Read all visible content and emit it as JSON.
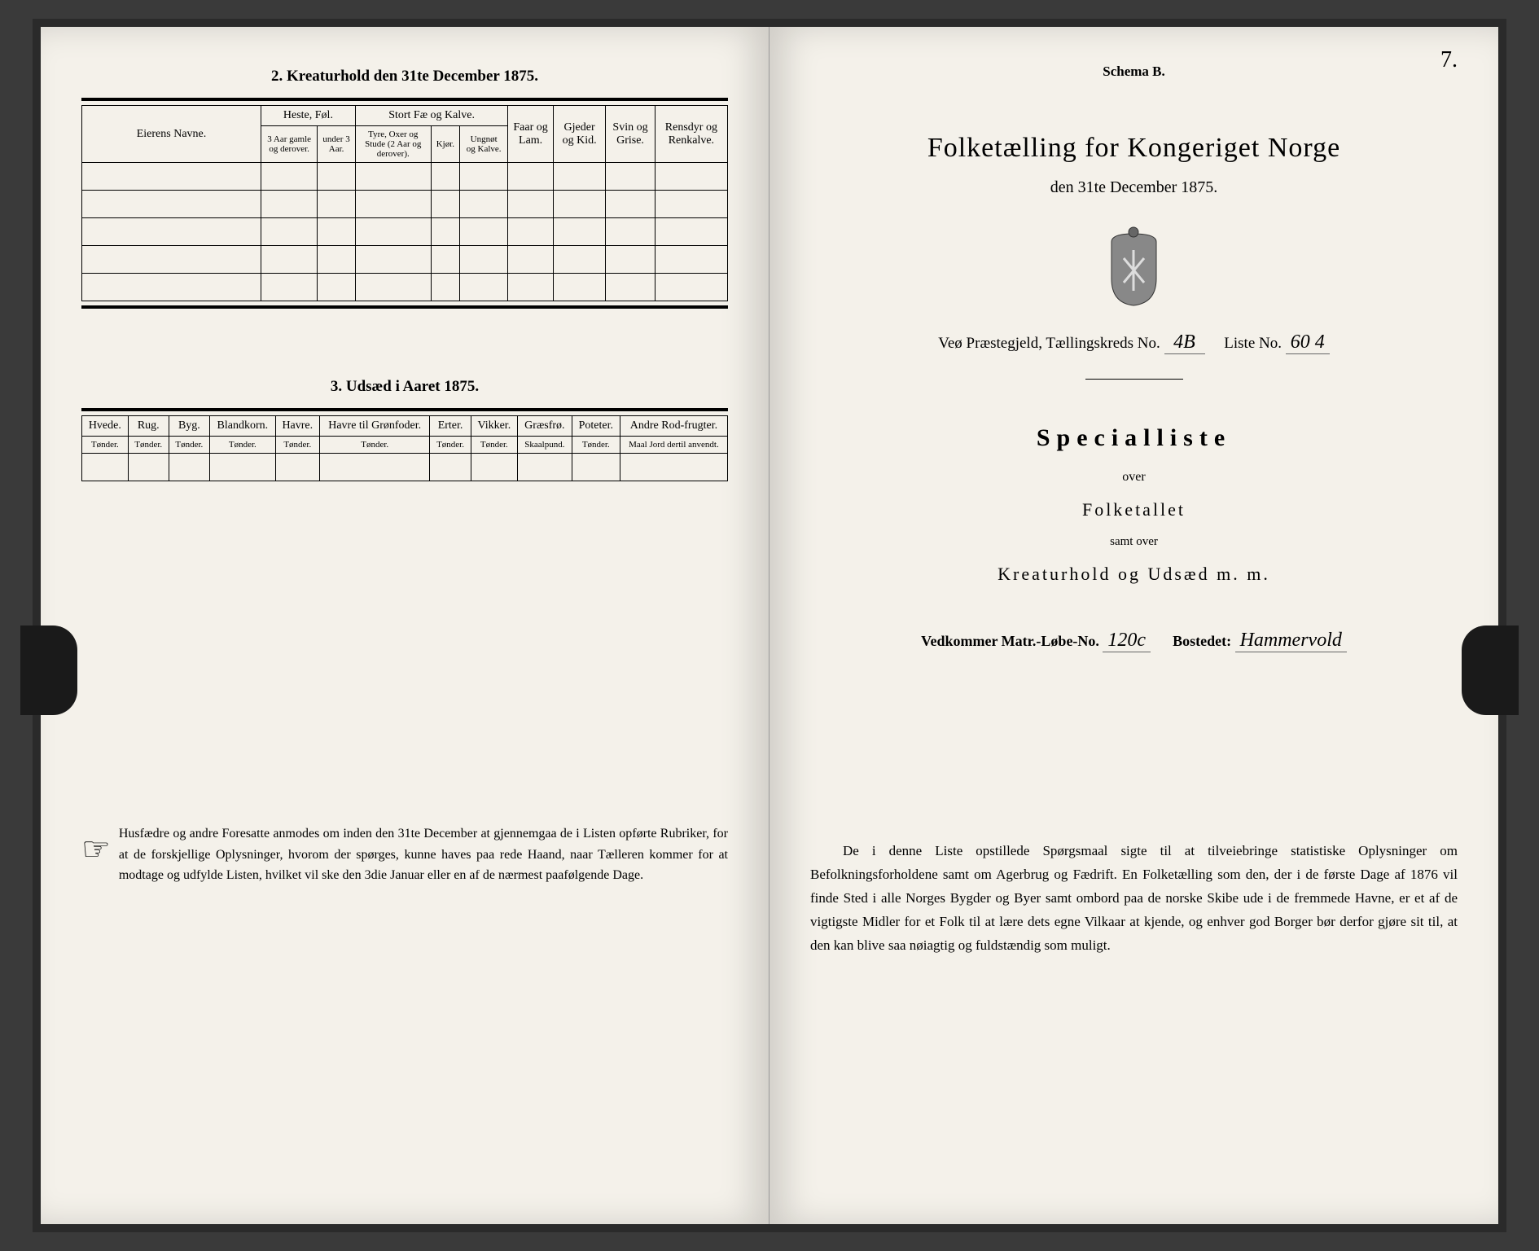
{
  "left": {
    "section2_title": "2. Kreaturhold den 31te December 1875.",
    "table2": {
      "col_eier": "Eierens Navne.",
      "grp_heste": "Heste, Føl.",
      "grp_storfe": "Stort Fæ og Kalve.",
      "col_faar": "Faar og Lam.",
      "col_gjeder": "Gjeder og Kid.",
      "col_svin": "Svin og Grise.",
      "col_ren": "Rensdyr og Renkalve.",
      "sub_heste1": "3 Aar gamle og derover.",
      "sub_heste2": "under 3 Aar.",
      "sub_fe1": "Tyre, Oxer og Stude (2 Aar og derover).",
      "sub_fe2": "Kjør.",
      "sub_fe3": "Ungnøt og Kalve."
    },
    "section3_title": "3. Udsæd i Aaret 1875.",
    "table3": {
      "cols": [
        "Hvede.",
        "Rug.",
        "Byg.",
        "Blandkorn.",
        "Havre.",
        "Havre til Grønfoder.",
        "Erter.",
        "Vikker.",
        "Græsfrø.",
        "Poteter.",
        "Andre Rod-frugter."
      ],
      "units": [
        "Tønder.",
        "Tønder.",
        "Tønder.",
        "Tønder.",
        "Tønder.",
        "Tønder.",
        "Tønder.",
        "Tønder.",
        "Skaalpund.",
        "Tønder.",
        "Maal Jord dertil anvendt."
      ]
    },
    "footnote": "Husfædre og andre Foresatte anmodes om inden den 31te December at gjennemgaa de i Listen opførte Rubriker, for at de forskjellige Oplysninger, hvorom der spørges, kunne haves paa rede Haand, naar Tælleren kommer for at modtage og udfylde Listen, hvilket vil ske den 3die Januar eller en af de nærmest paafølgende Dage."
  },
  "right": {
    "schema": "Schema B.",
    "page_num": "7.",
    "title": "Folketælling for Kongeriget Norge",
    "subtitle": "den 31te December 1875.",
    "field_prefix": "Veø Præstegjeld, Tællingskreds No.",
    "field_kreds": "4B",
    "field_liste_label": "Liste No.",
    "field_liste": "60 4",
    "special": "Specialliste",
    "over": "over",
    "folketallet": "Folketallet",
    "samt": "samt over",
    "kreatur": "Kreaturhold og Udsæd m. m.",
    "vedk_label": "Vedkommer Matr.-Løbe-No.",
    "vedk_val": "120c",
    "bosted_label": "Bostedet:",
    "bosted_val": "Hammervold",
    "para": "De i denne Liste opstillede Spørgsmaal sigte til at tilveiebringe statistiske Oplysninger om Befolkningsforholdene samt om Agerbrug og Fædrift. En Folketælling som den, der i de første Dage af 1876 vil finde Sted i alle Norges Bygder og Byer samt ombord paa de norske Skibe ude i de fremmede Havne, er et af de vigtigste Midler for et Folk til at lære dets egne Vilkaar at kjende, og enhver god Borger bør derfor gjøre sit til, at den kan blive saa nøiagtig og fuldstændig som muligt."
  }
}
